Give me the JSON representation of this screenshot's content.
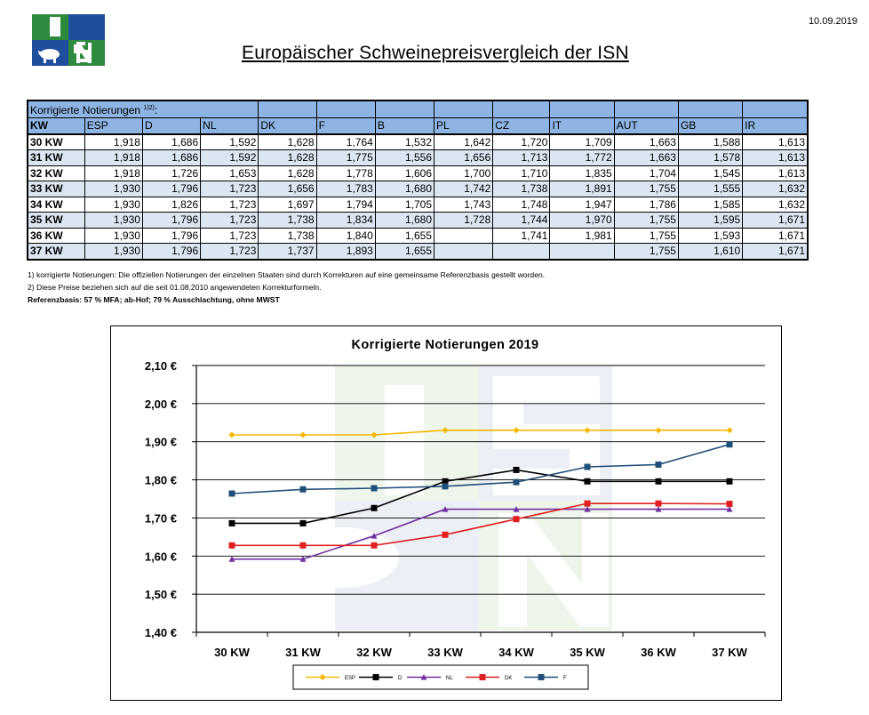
{
  "date": "10.09.2019",
  "logo": {
    "text": "ISN"
  },
  "title": "Europäischer Schweinepreisvergleich der ISN",
  "table": {
    "caption": "Korrigierte Notierungen",
    "caption_sup": "1)2)",
    "columns": [
      "KW",
      "ESP",
      "D",
      "NL",
      "DK",
      "F",
      "B",
      "PL",
      "CZ",
      "IT",
      "AUT",
      "GB",
      "IR"
    ],
    "rows": [
      [
        "30 KW",
        "1,918",
        "1,686",
        "1,592",
        "1,628",
        "1,764",
        "1,532",
        "1,642",
        "1,720",
        "1,709",
        "1,663",
        "1,588",
        "1,613"
      ],
      [
        "31 KW",
        "1,918",
        "1,686",
        "1,592",
        "1,628",
        "1,775",
        "1,556",
        "1,656",
        "1,713",
        "1,772",
        "1,663",
        "1,578",
        "1,613"
      ],
      [
        "32 KW",
        "1,918",
        "1,726",
        "1,653",
        "1,628",
        "1,778",
        "1,606",
        "1,700",
        "1,710",
        "1,835",
        "1,704",
        "1,545",
        "1,613"
      ],
      [
        "33 KW",
        "1,930",
        "1,796",
        "1,723",
        "1,656",
        "1,783",
        "1,680",
        "1,742",
        "1,738",
        "1,891",
        "1,755",
        "1,555",
        "1,632"
      ],
      [
        "34 KW",
        "1,930",
        "1,826",
        "1,723",
        "1,697",
        "1,794",
        "1,705",
        "1,743",
        "1,748",
        "1,947",
        "1,786",
        "1,585",
        "1,632"
      ],
      [
        "35 KW",
        "1,930",
        "1,796",
        "1,723",
        "1,738",
        "1,834",
        "1,680",
        "1,728",
        "1,744",
        "1,970",
        "1,755",
        "1,595",
        "1,671"
      ],
      [
        "36 KW",
        "1,930",
        "1,796",
        "1,723",
        "1,738",
        "1,840",
        "1,655",
        "",
        "1,741",
        "1,981",
        "1,755",
        "1,593",
        "1,671"
      ],
      [
        "37 KW",
        "1,930",
        "1,796",
        "1,723",
        "1,737",
        "1,893",
        "1,655",
        "",
        "",
        "",
        "1,755",
        "1,610",
        "1,671"
      ]
    ]
  },
  "notes": {
    "n1": "1) korrigierte Notierungen: Die offiziellen Notierungen der einzelnen Staaten sind durch Korrekturen auf eine gemeinsame Referenzbasis gestellt worden.",
    "n2": "2) Diese Preise beziehen sich auf die seit 01.08.2010 angewendeten Korrekturformeln.",
    "n3": "Referenzbasis: 57 % MFA; ab-Hof; 79 % Ausschlachtung, ohne MWST"
  },
  "chart_data": {
    "type": "line",
    "title": "Korrigierte Notierungen 2019",
    "xlabel": "",
    "ylabel": "",
    "categories": [
      "30 KW",
      "31 KW",
      "32 KW",
      "33 KW",
      "34 KW",
      "35 KW",
      "36 KW",
      "37 KW"
    ],
    "y_tick_labels": [
      "1,40 €",
      "1,50 €",
      "1,60 €",
      "1,70 €",
      "1,80 €",
      "1,90 €",
      "2,00 €",
      "2,10 €"
    ],
    "ylim": [
      1.4,
      2.1
    ],
    "y_step": 0.1,
    "grid": "horizontal",
    "legend_position": "bottom",
    "series": [
      {
        "name": "ESP",
        "color": "#f5b800",
        "marker": "diamond",
        "values": [
          1.918,
          1.918,
          1.918,
          1.93,
          1.93,
          1.93,
          1.93,
          1.93
        ]
      },
      {
        "name": "D",
        "color": "#000000",
        "marker": "square",
        "values": [
          1.686,
          1.686,
          1.726,
          1.796,
          1.826,
          1.796,
          1.796,
          1.796
        ]
      },
      {
        "name": "NL",
        "color": "#7030a0",
        "marker": "triangle",
        "values": [
          1.592,
          1.592,
          1.653,
          1.723,
          1.723,
          1.723,
          1.723,
          1.723
        ]
      },
      {
        "name": "DK",
        "color": "#e02020",
        "marker": "square",
        "values": [
          1.628,
          1.628,
          1.628,
          1.656,
          1.697,
          1.738,
          1.738,
          1.737
        ]
      },
      {
        "name": "F",
        "color": "#1f4e79",
        "marker": "square",
        "values": [
          1.764,
          1.775,
          1.778,
          1.783,
          1.794,
          1.834,
          1.84,
          1.893
        ]
      }
    ]
  }
}
